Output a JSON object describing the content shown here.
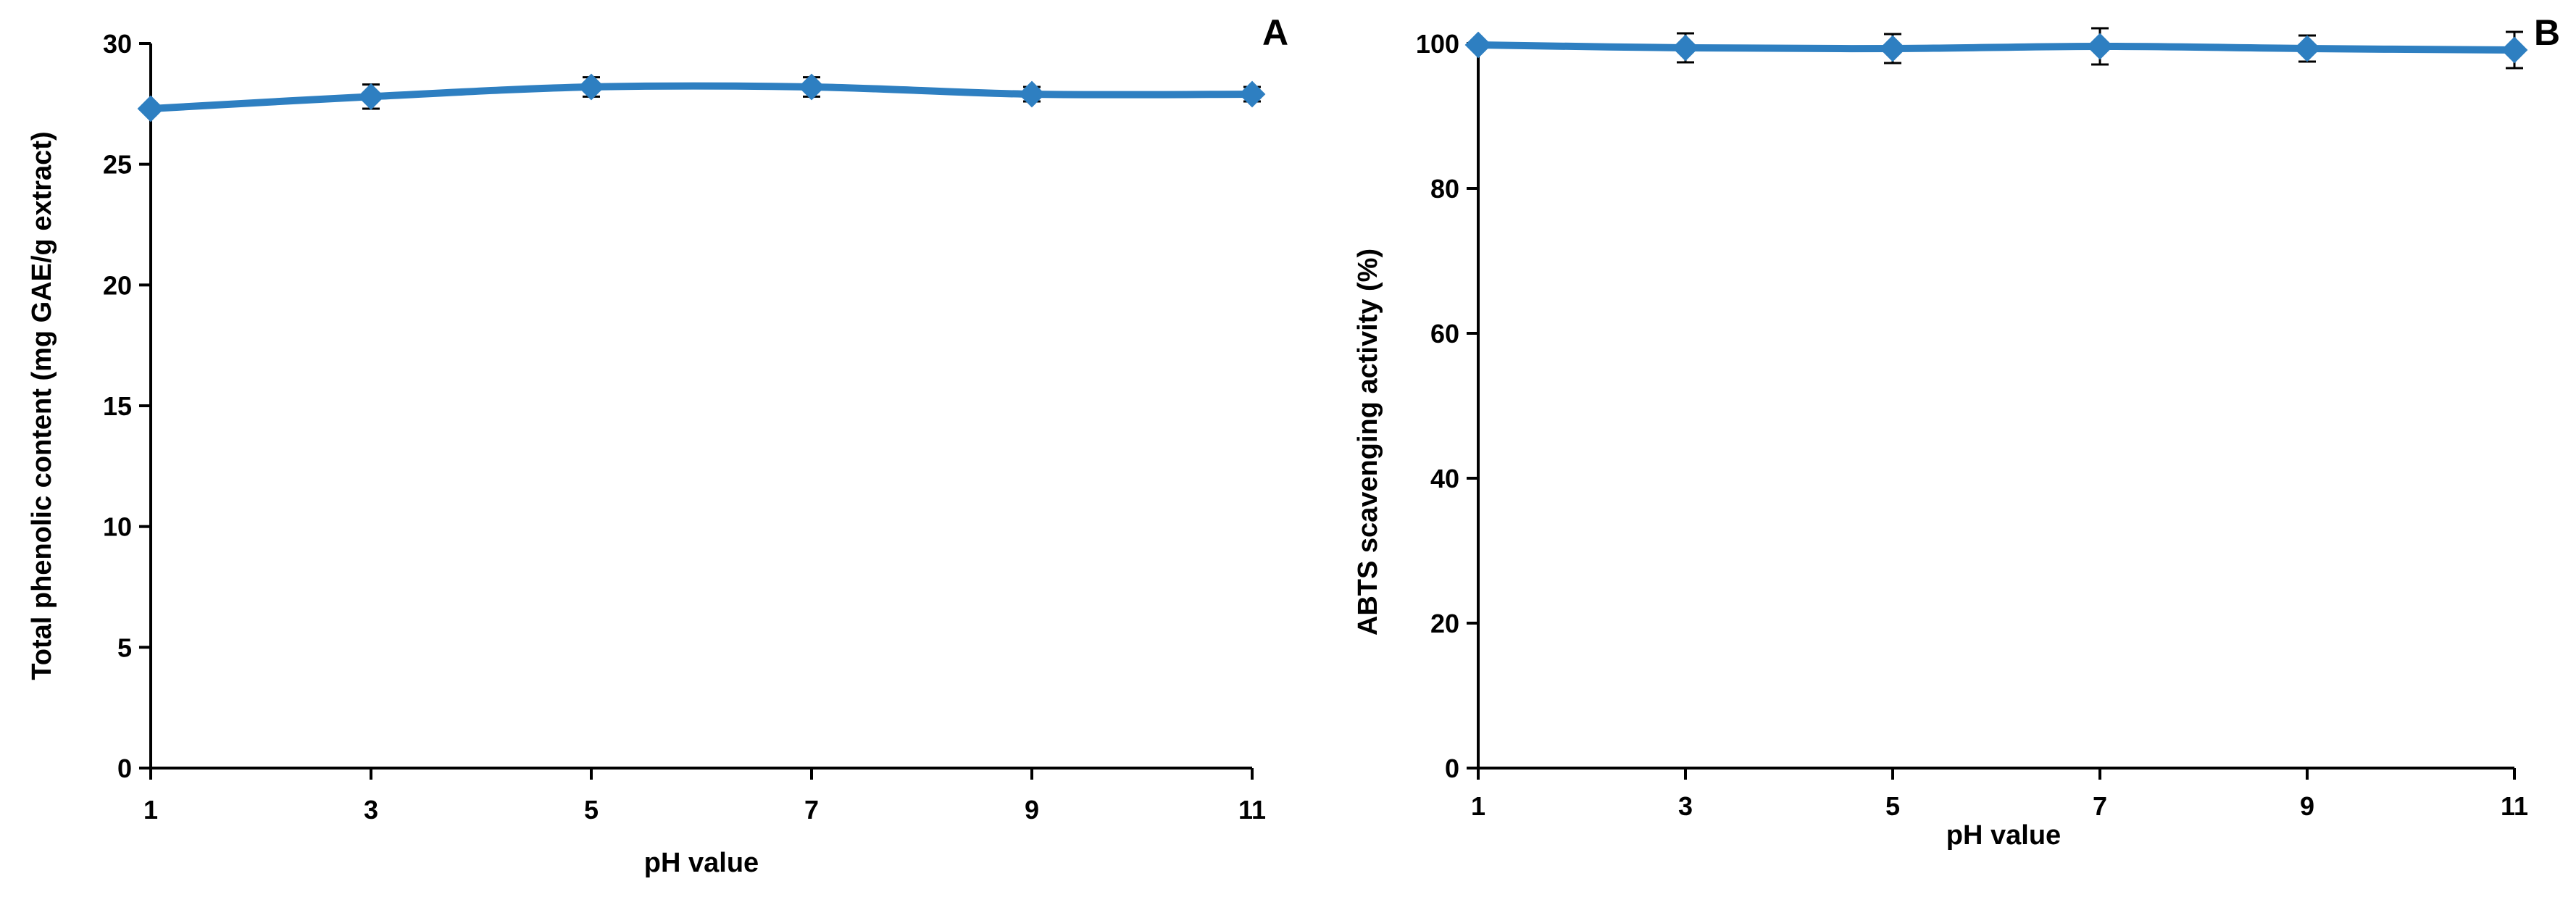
{
  "colors": {
    "series": "#2E7FC1",
    "axis": "#000000",
    "background": "#ffffff"
  },
  "chart_data": [
    {
      "type": "line",
      "panel_letter": "A",
      "xlabel": "pH value",
      "ylabel": "Total phenolic content  (mg GAE/g  extract)",
      "x": [
        1,
        3,
        5,
        7,
        9,
        11
      ],
      "x_tick_labels": [
        "1",
        "3",
        "5",
        "7",
        "9",
        "11"
      ],
      "xlim": [
        1,
        11
      ],
      "y_tick_values": [
        0,
        5,
        10,
        15,
        20,
        25,
        30
      ],
      "y_tick_labels": [
        "0",
        "5",
        "10",
        "15",
        "20",
        "25",
        "30"
      ],
      "ylim": [
        0,
        30
      ],
      "grid": false,
      "smooth": true,
      "marker": "diamond",
      "series": [
        {
          "values": [
            27.3,
            27.8,
            28.2,
            28.2,
            27.9,
            27.9
          ],
          "errors": [
            0.0,
            0.5,
            0.4,
            0.4,
            0.3,
            0.3
          ]
        }
      ]
    },
    {
      "type": "line",
      "panel_letter": "B",
      "xlabel": "pH value",
      "ylabel": "ABTS scavenging activity (%)",
      "x": [
        1,
        3,
        5,
        7,
        9,
        11
      ],
      "x_tick_labels": [
        "1",
        "3",
        "5",
        "7",
        "9",
        "11"
      ],
      "xlim": [
        1,
        11
      ],
      "y_tick_values": [
        0,
        20,
        40,
        60,
        80,
        100
      ],
      "y_tick_labels": [
        "0",
        "20",
        "40",
        "60",
        "80",
        "100"
      ],
      "ylim": [
        0,
        100
      ],
      "grid": false,
      "smooth": true,
      "marker": "diamond",
      "series": [
        {
          "values": [
            99.8,
            99.4,
            99.3,
            99.6,
            99.3,
            99.1
          ],
          "errors": [
            0.0,
            2.0,
            2.0,
            2.5,
            1.8,
            2.5
          ]
        }
      ]
    }
  ]
}
